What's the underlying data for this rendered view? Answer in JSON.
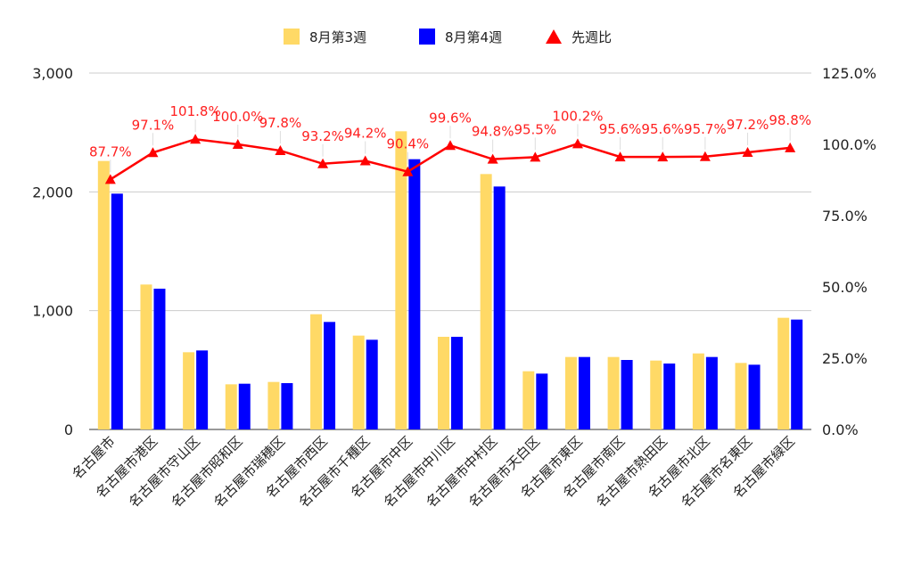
{
  "chart_data": {
    "type": "bar",
    "categories": [
      "名古屋市",
      "名古屋市港区",
      "名古屋市守山区",
      "名古屋市昭和区",
      "名古屋市瑞穂区",
      "名古屋市西区",
      "名古屋市千種区",
      "名古屋市中区",
      "名古屋市中川区",
      "名古屋市中村区",
      "名古屋市天白区",
      "名古屋市東区",
      "名古屋市南区",
      "名古屋市熱田区",
      "名古屋市北区",
      "名古屋市名東区",
      "名古屋市緑区"
    ],
    "series": [
      {
        "name": "8月第3週",
        "type": "bar",
        "axis": "left",
        "color": "#ffd966",
        "values": [
          2260,
          1220,
          650,
          380,
          400,
          970,
          790,
          2510,
          780,
          2150,
          490,
          610,
          610,
          580,
          640,
          560,
          940
        ]
      },
      {
        "name": "8月第4週",
        "type": "bar",
        "axis": "left",
        "color": "#0000ff",
        "values": [
          1985,
          1185,
          665,
          385,
          390,
          905,
          755,
          2275,
          780,
          2045,
          470,
          610,
          585,
          555,
          610,
          545,
          925
        ]
      },
      {
        "name": "先週比",
        "type": "line",
        "axis": "right",
        "color": "#ff0000",
        "marker": "triangle",
        "values": [
          87.7,
          97.1,
          101.8,
          100.0,
          97.8,
          93.2,
          94.2,
          90.4,
          99.6,
          94.8,
          95.5,
          100.2,
          95.6,
          95.6,
          95.7,
          97.2,
          98.8
        ],
        "labels": [
          "87.7%",
          "97.1%",
          "101.8%",
          "100.0%",
          "97.8%",
          "93.2%",
          "94.2%",
          "90.4%",
          "99.6%",
          "94.8%",
          "95.5%",
          "100.2%",
          "95.6%",
          "95.6%",
          "95.7%",
          "97.2%",
          "98.8%"
        ]
      }
    ],
    "y_left": {
      "min": 0,
      "max": 3000,
      "ticks": [
        0,
        1000,
        2000,
        3000
      ],
      "tick_labels": [
        "0",
        "1,000",
        "2,000",
        "3,000"
      ]
    },
    "y_right": {
      "min": 0,
      "max": 125,
      "ticks": [
        0,
        25,
        50,
        75,
        100,
        125
      ],
      "tick_labels": [
        "0.0%",
        "25.0%",
        "50.0%",
        "75.0%",
        "100.0%",
        "125.0%"
      ]
    },
    "grid": true,
    "legend_position": "top-center"
  }
}
